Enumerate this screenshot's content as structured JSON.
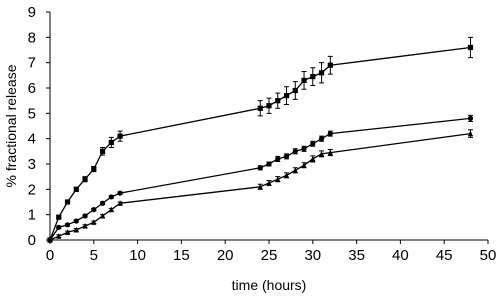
{
  "chart_data": {
    "type": "line",
    "x_label": "time (hours)",
    "y_label": "% fractional release",
    "x": [
      0,
      1,
      2,
      3,
      4,
      5,
      6,
      7,
      8,
      24,
      25,
      26,
      27,
      28,
      29,
      30,
      31,
      32,
      48
    ],
    "series": [
      {
        "color": "#000000",
        "marker": "square",
        "values": [
          0,
          0.9,
          1.5,
          2.0,
          2.4,
          2.8,
          3.5,
          3.85,
          4.1,
          5.2,
          5.3,
          5.5,
          5.7,
          5.9,
          6.3,
          6.45,
          6.6,
          6.9,
          7.6
        ],
        "errors": [
          0,
          0.05,
          0.05,
          0.08,
          0.1,
          0.1,
          0.15,
          0.2,
          0.2,
          0.3,
          0.3,
          0.3,
          0.35,
          0.35,
          0.35,
          0.35,
          0.4,
          0.35,
          0.4
        ]
      },
      {
        "color": "#000000",
        "marker": "circle",
        "values": [
          0,
          0.5,
          0.6,
          0.75,
          0.95,
          1.2,
          1.45,
          1.7,
          1.85,
          2.85,
          3.0,
          3.2,
          3.3,
          3.5,
          3.6,
          3.8,
          4.0,
          4.2,
          4.8
        ],
        "errors": [
          0,
          0.05,
          0.05,
          0.05,
          0.05,
          0.05,
          0.05,
          0.05,
          0.05,
          0.08,
          0.08,
          0.1,
          0.1,
          0.1,
          0.1,
          0.1,
          0.1,
          0.1,
          0.12
        ]
      },
      {
        "color": "#000000",
        "marker": "triangle",
        "values": [
          0,
          0.15,
          0.3,
          0.4,
          0.55,
          0.7,
          0.95,
          1.2,
          1.45,
          2.1,
          2.25,
          2.4,
          2.55,
          2.75,
          2.95,
          3.2,
          3.4,
          3.45,
          4.2
        ],
        "errors": [
          0,
          0.05,
          0.05,
          0.05,
          0.05,
          0.05,
          0.05,
          0.05,
          0.05,
          0.1,
          0.1,
          0.1,
          0.1,
          0.1,
          0.1,
          0.12,
          0.12,
          0.12,
          0.15
        ]
      }
    ],
    "xlim": [
      0,
      50
    ],
    "xticks": [
      0,
      5,
      10,
      15,
      20,
      25,
      30,
      35,
      40,
      45,
      50
    ],
    "ylim": [
      0,
      9
    ],
    "yticks": [
      0,
      1,
      2,
      3,
      4,
      5,
      6,
      7,
      8,
      9
    ],
    "grid": false
  }
}
